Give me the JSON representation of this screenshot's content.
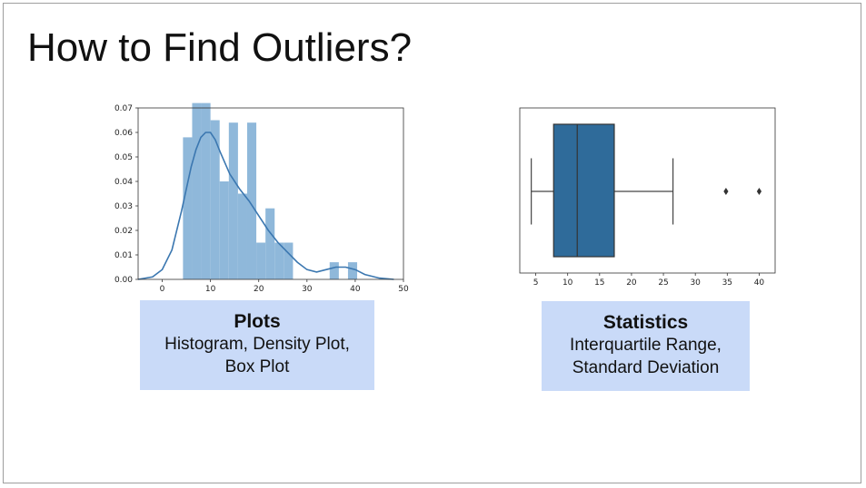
{
  "slide": {
    "title": "How to Find Outliers?"
  },
  "captions": {
    "plots": {
      "heading": "Plots",
      "line1": "Histogram, Density Plot,",
      "line2": "Box Plot"
    },
    "statistics": {
      "heading": "Statistics",
      "line1": "Interquartile Range,",
      "line2": "Standard Deviation"
    }
  },
  "colors": {
    "bar": "#8fb8da",
    "kde": "#3b77b0",
    "box": "#2f6b9a",
    "caption_bg": "#c9daf8"
  },
  "chart_data": [
    {
      "type": "bar",
      "subtype": "histogram-with-density",
      "xlim": [
        -5,
        50
      ],
      "ylim": [
        0,
        0.07
      ],
      "xticks": [
        "0",
        "10",
        "20",
        "30",
        "40",
        "50"
      ],
      "yticks": [
        "0.00",
        "0.01",
        "0.02",
        "0.03",
        "0.04",
        "0.05",
        "0.06",
        "0.07"
      ],
      "bins": [
        {
          "x0": 4.3,
          "x1": 6.2,
          "value": 0.058
        },
        {
          "x0": 6.2,
          "x1": 8.1,
          "value": 0.072
        },
        {
          "x0": 8.1,
          "x1": 10.0,
          "value": 0.072
        },
        {
          "x0": 10.0,
          "x1": 11.9,
          "value": 0.065
        },
        {
          "x0": 11.9,
          "x1": 13.8,
          "value": 0.04
        },
        {
          "x0": 13.8,
          "x1": 15.7,
          "value": 0.064
        },
        {
          "x0": 15.7,
          "x1": 17.6,
          "value": 0.035
        },
        {
          "x0": 17.6,
          "x1": 19.5,
          "value": 0.064
        },
        {
          "x0": 19.5,
          "x1": 21.4,
          "value": 0.015
        },
        {
          "x0": 21.4,
          "x1": 23.3,
          "value": 0.029
        },
        {
          "x0": 23.3,
          "x1": 25.2,
          "value": 0.015
        },
        {
          "x0": 25.2,
          "x1": 27.1,
          "value": 0.015
        },
        {
          "x0": 27.1,
          "x1": 29.0,
          "value": 0.0
        },
        {
          "x0": 29.0,
          "x1": 30.9,
          "value": 0.0
        },
        {
          "x0": 30.9,
          "x1": 32.8,
          "value": 0.0
        },
        {
          "x0": 32.8,
          "x1": 34.7,
          "value": 0.0
        },
        {
          "x0": 34.7,
          "x1": 36.6,
          "value": 0.007
        },
        {
          "x0": 36.6,
          "x1": 38.5,
          "value": 0.0
        },
        {
          "x0": 38.5,
          "x1": 40.4,
          "value": 0.007
        }
      ],
      "density": {
        "x": [
          -5,
          -2,
          0,
          2,
          4,
          6,
          7,
          8,
          9,
          10,
          11,
          12,
          14,
          16,
          18,
          20,
          22,
          24,
          26,
          28,
          30,
          32,
          34,
          36,
          38,
          40,
          42,
          45,
          48
        ],
        "y": [
          0.0,
          0.001,
          0.004,
          0.012,
          0.028,
          0.046,
          0.053,
          0.058,
          0.06,
          0.06,
          0.057,
          0.052,
          0.043,
          0.037,
          0.032,
          0.026,
          0.02,
          0.015,
          0.011,
          0.007,
          0.004,
          0.003,
          0.004,
          0.005,
          0.005,
          0.004,
          0.002,
          0.0005,
          0.0
        ]
      }
    },
    {
      "type": "box",
      "orientation": "horizontal",
      "xlim": [
        2.5,
        42.5
      ],
      "xticks": [
        "5",
        "10",
        "15",
        "20",
        "25",
        "30",
        "35",
        "40"
      ],
      "whisker_low": 4.3,
      "q1": 7.8,
      "median": 11.5,
      "q3": 17.3,
      "whisker_high": 26.5,
      "outliers": [
        34.8,
        40.0
      ]
    }
  ]
}
